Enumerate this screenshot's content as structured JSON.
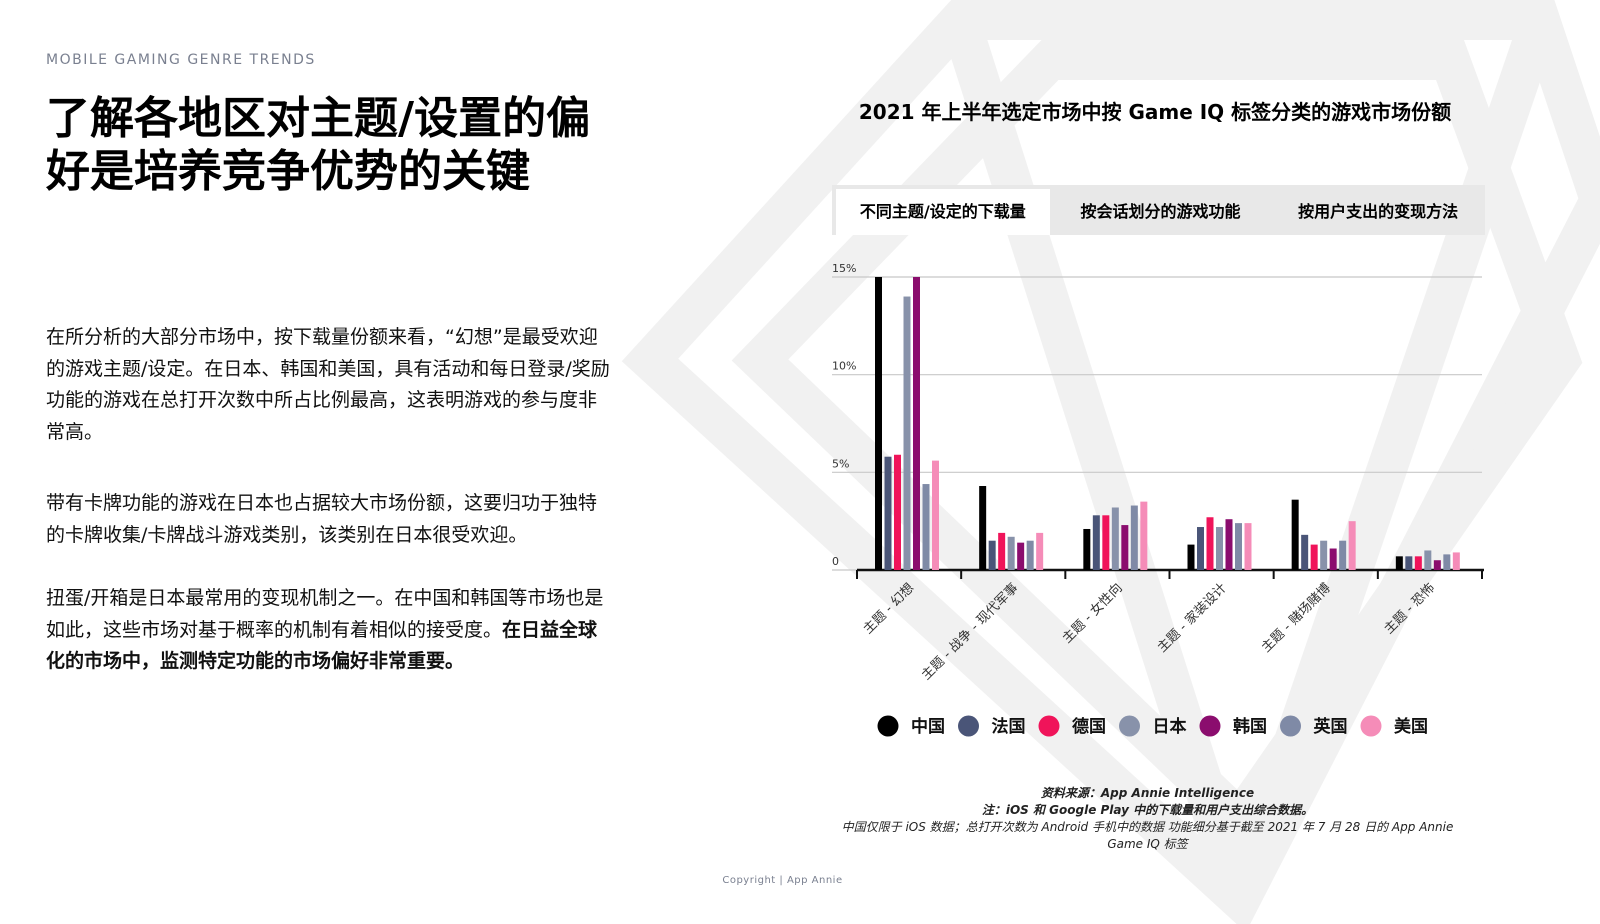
{
  "header": {
    "eyebrow": "MOBILE GAMING GENRE TRENDS",
    "title": "了解各地区对主题/设置的偏好是培养竞争优势的关键"
  },
  "body": {
    "paragraphs": [
      {
        "text": "在所分析的大部分市场中，按下载量份额来看，“幻想”是最受欢迎的游戏主题/设定。在日本、韩国和美国，具有活动和每日登录/奖励功能的游戏在总打开次数中所占比例最高，这表明游戏的参与度非常高。"
      },
      {
        "text": "带有卡牌功能的游戏在日本也占据较大市场份额，这要归功于独特的卡牌收集/卡牌战斗游戏类别，该类别在日本很受欢迎。"
      },
      {
        "text": "扭蛋/开箱是日本最常用的变现机制之一。在中国和韩国等市场也是如此，这些市场对基于概率的机制有着相似的接受度。",
        "emphasis": "在日益全球化的市场中，监测特定功能的市场偏好非常重要。"
      }
    ]
  },
  "tabs": {
    "items": [
      "不同主题/设定的下载量",
      "按会话划分的游戏功能",
      "按用户支出的变现方法"
    ],
    "active": 0
  },
  "chart_data": {
    "type": "bar",
    "title": "2021 年上半年选定市场中按 Game IQ 标签分类的游戏市场份额",
    "categories": [
      "主题 - 幻想",
      "主题 - 战争 - 现代军事",
      "主题 - 女性向",
      "主题 - 家装设计",
      "主题 - 赌场赌博",
      "主题 - 恐怖"
    ],
    "series": [
      {
        "name": "中国",
        "color": "#000000",
        "values": [
          15,
          4.3,
          2.1,
          1.3,
          3.6,
          0.7
        ]
      },
      {
        "name": "法国",
        "color": "#4a5578",
        "values": [
          5.8,
          1.5,
          2.8,
          2.2,
          1.8,
          0.7
        ]
      },
      {
        "name": "德国",
        "color": "#f0145a",
        "values": [
          5.9,
          1.9,
          2.8,
          2.7,
          1.3,
          0.7
        ]
      },
      {
        "name": "日本",
        "color": "#8892aa",
        "values": [
          14,
          1.7,
          3.2,
          2.2,
          1.5,
          1
        ]
      },
      {
        "name": "韩国",
        "color": "#8b0d6e",
        "values": [
          15,
          1.4,
          2.3,
          2.6,
          1.1,
          0.5
        ]
      },
      {
        "name": "英国",
        "color": "#7f8aa6",
        "values": [
          4.4,
          1.5,
          3.3,
          2.4,
          1.5,
          0.8
        ]
      },
      {
        "name": "美国",
        "color": "#f58cb8",
        "values": [
          5.6,
          1.9,
          3.5,
          2.4,
          2.5,
          0.9
        ]
      }
    ],
    "ylim": [
      0,
      15
    ],
    "yticks": [
      0,
      {
        "value": 5,
        "label": "5%"
      },
      {
        "value": 10,
        "label": "10%"
      },
      {
        "value": 15,
        "label": "15%"
      }
    ],
    "grid": true,
    "legend": "bottom"
  },
  "source": {
    "lines": [
      "资料来源：App Annie Intelligence",
      "注：iOS 和 Google Play 中的下载量和用户支出综合数据。",
      "中国仅限于 iOS 数据；总打开次数为 Android 手机中的数据 功能细分基于截至 2021 年 7 月 28 日的 App Annie Game IQ 标签"
    ]
  },
  "footer": "Copyright | App Annie"
}
